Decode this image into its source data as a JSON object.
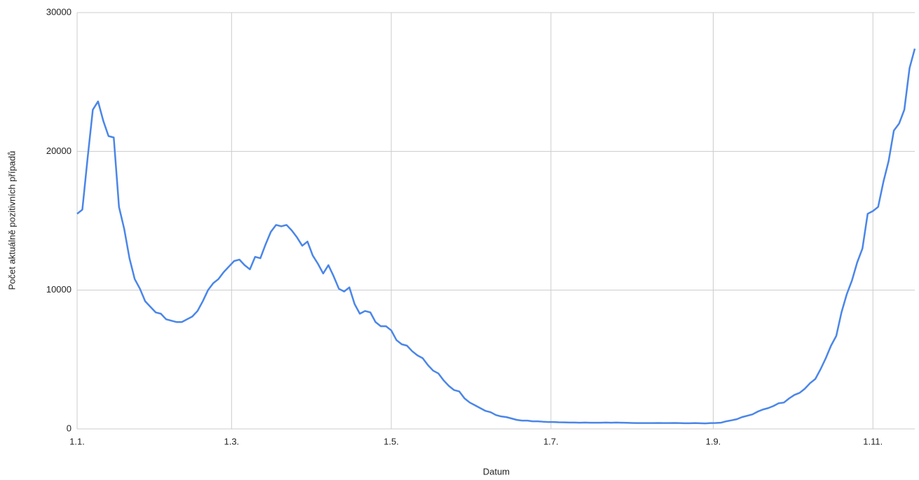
{
  "chart_data": {
    "type": "line",
    "x_title": "Datum",
    "y_title": "Počet aktuálně pozitivních případů",
    "x": [
      0,
      2,
      4,
      6,
      8,
      10,
      12,
      14,
      16,
      18,
      20,
      22,
      24,
      26,
      28,
      30,
      32,
      34,
      36,
      38,
      40,
      42,
      44,
      46,
      48,
      50,
      52,
      54,
      56,
      58,
      60,
      62,
      64,
      66,
      68,
      70,
      72,
      74,
      76,
      78,
      80,
      82,
      84,
      86,
      88,
      90,
      92,
      94,
      96,
      98,
      100,
      102,
      104,
      106,
      108,
      110,
      112,
      114,
      116,
      118,
      120,
      122,
      124,
      126,
      128,
      130,
      132,
      134,
      136,
      138,
      140,
      142,
      144,
      146,
      148,
      150,
      152,
      154,
      156,
      158,
      160,
      162,
      164,
      166,
      168,
      170,
      172,
      174,
      176,
      178,
      180,
      182,
      184,
      186,
      188,
      190,
      192,
      194,
      196,
      198,
      200,
      202,
      204,
      206,
      208,
      210,
      212,
      214,
      216,
      218,
      220,
      222,
      224,
      226,
      228,
      230,
      232,
      234,
      236,
      238,
      240,
      242,
      244,
      246,
      248,
      250,
      252,
      254,
      256,
      258,
      260,
      262,
      264,
      266,
      268,
      270,
      272,
      274,
      276,
      278,
      280,
      282,
      284,
      286,
      288,
      290,
      292,
      294,
      296,
      298,
      300,
      302,
      304,
      306,
      308,
      310,
      312,
      314,
      316,
      318,
      320
    ],
    "series": [
      {
        "color": "#4a86e8",
        "values": [
          15500,
          15800,
          19500,
          23000,
          23600,
          22200,
          21100,
          21000,
          16000,
          14400,
          12300,
          10800,
          10100,
          9200,
          8800,
          8400,
          8300,
          7900,
          7800,
          7700,
          7700,
          7900,
          8100,
          8500,
          9200,
          10000,
          10500,
          10800,
          11300,
          11700,
          12100,
          12200,
          11800,
          11500,
          12400,
          12300,
          13300,
          14200,
          14700,
          14600,
          14700,
          14300,
          13800,
          13200,
          13500,
          12500,
          11900,
          11200,
          11800,
          11000,
          10100,
          9900,
          10200,
          9000,
          8300,
          8500,
          8400,
          7700,
          7400,
          7400,
          7100,
          6400,
          6100,
          6000,
          5600,
          5300,
          5100,
          4600,
          4200,
          4000,
          3500,
          3100,
          2800,
          2700,
          2200,
          1900,
          1700,
          1500,
          1300,
          1200,
          1000,
          900,
          850,
          750,
          650,
          600,
          600,
          550,
          550,
          520,
          500,
          500,
          480,
          470,
          460,
          460,
          450,
          460,
          450,
          450,
          450,
          460,
          450,
          460,
          450,
          440,
          430,
          420,
          420,
          420,
          420,
          430,
          420,
          420,
          430,
          420,
          410,
          410,
          420,
          410,
          400,
          420,
          430,
          450,
          550,
          620,
          700,
          850,
          950,
          1050,
          1250,
          1400,
          1500,
          1650,
          1850,
          1900,
          2200,
          2450,
          2600,
          2900,
          3300,
          3600,
          4300,
          5100,
          6000,
          6700,
          8400,
          9700,
          10700,
          12000,
          13000,
          15500,
          15700,
          16000,
          17800,
          19300,
          21500,
          22000,
          23000,
          26000,
          27400
        ]
      }
    ],
    "xlim": [
      0,
      320
    ],
    "xticks": [
      {
        "value": 0,
        "label": "1.1."
      },
      {
        "value": 59,
        "label": "1.3."
      },
      {
        "value": 120,
        "label": "1.5."
      },
      {
        "value": 181,
        "label": "1.7."
      },
      {
        "value": 243,
        "label": "1.9."
      },
      {
        "value": 304,
        "label": "1.11."
      }
    ],
    "ylim": [
      0,
      30000
    ],
    "yticks": [
      0,
      10000,
      20000,
      30000
    ],
    "grid": true
  }
}
